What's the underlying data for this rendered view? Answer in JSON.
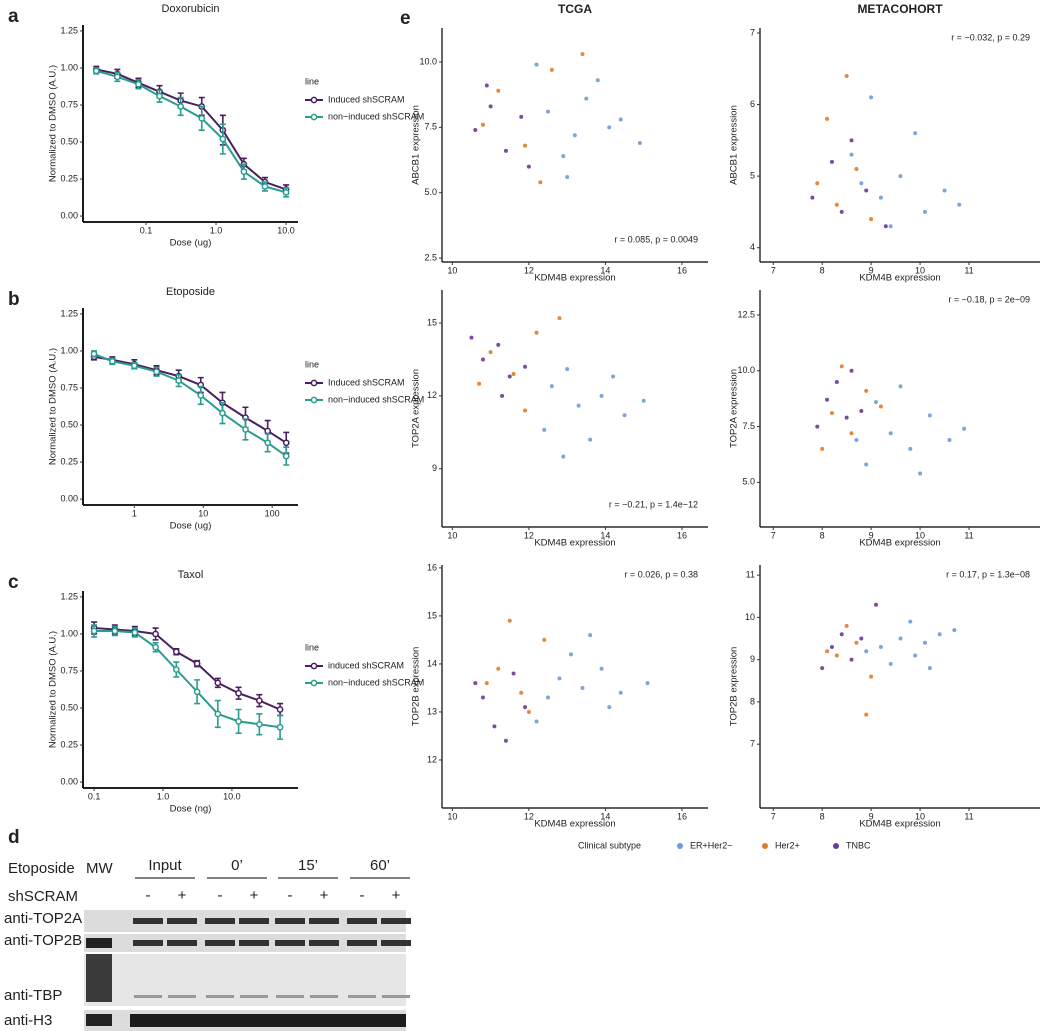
{
  "chart_data": [
    {
      "type": "line",
      "panel": "a",
      "title": "Doxorubicin",
      "xlabel": "Dose (ug)",
      "ylabel": "Normalized to DMSO (A.U.)",
      "log_x": true,
      "xlim": [
        0.0126,
        14.8
      ],
      "xticks": [
        0.1,
        {
          "value": 1,
          "label": "1.0"
        },
        {
          "value": 10,
          "label": "10.0"
        }
      ],
      "ylim": [
        -0.04,
        1.29
      ],
      "yticks": [
        {
          "value": 0,
          "label": "0.00"
        },
        0.25,
        {
          "value": 0.5,
          "label": "0.50"
        },
        0.75,
        {
          "value": 1,
          "label": "1.00"
        },
        1.25
      ],
      "legend_title": "line",
      "x": [
        0.0195,
        0.039,
        0.078,
        0.156,
        0.3125,
        0.625,
        1.25,
        2.5,
        5,
        10
      ],
      "series": [
        {
          "name": "Induced shSCRAM",
          "color": "#4a1f60",
          "values": [
            0.99,
            0.96,
            0.9,
            0.84,
            0.78,
            0.74,
            0.58,
            0.35,
            0.23,
            0.18
          ],
          "errors": [
            0.02,
            0.03,
            0.03,
            0.04,
            0.05,
            0.06,
            0.1,
            0.04,
            0.03,
            0.03
          ]
        },
        {
          "name": "non−induced shSCRAM",
          "color": "#2a9d8f",
          "values": [
            0.98,
            0.94,
            0.89,
            0.81,
            0.74,
            0.66,
            0.52,
            0.3,
            0.2,
            0.16
          ],
          "errors": [
            0.02,
            0.03,
            0.03,
            0.04,
            0.06,
            0.08,
            0.1,
            0.05,
            0.03,
            0.03
          ]
        }
      ]
    },
    {
      "type": "line",
      "panel": "b",
      "title": "Etoposide",
      "xlabel": "Dose (ug)",
      "ylabel": "Normalized to DMSO (A.U.)",
      "log_x": true,
      "xlim": [
        0.18,
        237
      ],
      "xticks": [
        1,
        10,
        100
      ],
      "ylim": [
        -0.04,
        1.29
      ],
      "yticks": [
        {
          "value": 0,
          "label": "0.00"
        },
        0.25,
        {
          "value": 0.5,
          "label": "0.50"
        },
        0.75,
        {
          "value": 1,
          "label": "1.00"
        },
        1.25
      ],
      "legend_title": "line",
      "x": [
        0.26,
        0.48,
        1.0,
        2.1,
        4.4,
        9.2,
        19,
        41,
        86,
        160
      ],
      "series": [
        {
          "name": "Induced shSCRAM",
          "color": "#4a1f60",
          "values": [
            0.96,
            0.94,
            0.91,
            0.87,
            0.83,
            0.77,
            0.65,
            0.55,
            0.46,
            0.38
          ],
          "errors": [
            0.02,
            0.02,
            0.03,
            0.03,
            0.04,
            0.05,
            0.07,
            0.07,
            0.07,
            0.07
          ]
        },
        {
          "name": "non−induced shSCRAM",
          "color": "#2a9d8f",
          "values": [
            0.98,
            0.93,
            0.9,
            0.86,
            0.8,
            0.7,
            0.58,
            0.47,
            0.38,
            0.29
          ],
          "errors": [
            0.02,
            0.02,
            0.02,
            0.03,
            0.04,
            0.06,
            0.07,
            0.07,
            0.06,
            0.06
          ]
        }
      ]
    },
    {
      "type": "line",
      "panel": "c",
      "title": "Taxol",
      "xlabel": "Dose (ng)",
      "ylabel": "Normalized to DMSO (A.U.)",
      "log_x": true,
      "xlim": [
        0.069,
        91
      ],
      "xticks": [
        0.1,
        {
          "value": 1,
          "label": "1.0"
        },
        {
          "value": 10,
          "label": "10.0"
        }
      ],
      "ylim": [
        -0.04,
        1.29
      ],
      "yticks": [
        {
          "value": 0,
          "label": "0.00"
        },
        0.25,
        {
          "value": 0.5,
          "label": "0.50"
        },
        0.75,
        {
          "value": 1,
          "label": "1.00"
        },
        1.25
      ],
      "legend_title": "line",
      "x": [
        0.1,
        0.2,
        0.39,
        0.78,
        1.56,
        3.125,
        6.25,
        12.5,
        25,
        50
      ],
      "series": [
        {
          "name": "induced shSCRAM",
          "color": "#4a1f60",
          "values": [
            1.04,
            1.03,
            1.02,
            1.0,
            0.88,
            0.8,
            0.67,
            0.6,
            0.55,
            0.49
          ],
          "errors": [
            0.04,
            0.03,
            0.03,
            0.04,
            0.02,
            0.02,
            0.03,
            0.04,
            0.04,
            0.04
          ]
        },
        {
          "name": "non−induced shSCRAM",
          "color": "#2a9d8f",
          "values": [
            1.02,
            1.02,
            1.01,
            0.91,
            0.76,
            0.61,
            0.46,
            0.41,
            0.39,
            0.37
          ],
          "errors": [
            0.04,
            0.03,
            0.03,
            0.03,
            0.05,
            0.08,
            0.09,
            0.08,
            0.07,
            0.08
          ]
        }
      ]
    },
    {
      "type": "scatter",
      "panel": "e",
      "title": "TCGA",
      "xlabel": "KDM4B expression",
      "ylabel": "ABCB1 expression",
      "annotation": "r = 0.085, p = 0.0049",
      "xlim": [
        9.73,
        16.68
      ],
      "xticks": [
        10,
        12,
        14,
        16
      ],
      "ylim": [
        2.35,
        11.3
      ],
      "yticks": [
        2.5,
        {
          "value": 5,
          "label": "5.0"
        },
        7.5,
        {
          "value": 10,
          "label": "10.0"
        }
      ],
      "series": [
        {
          "color": "#6f9bd8",
          "x": [
            12.5,
            13.2,
            13.8,
            14.4,
            12.9,
            13.5,
            14.9,
            12.2,
            13.0,
            14.1
          ],
          "values": [
            8.1,
            7.2,
            9.3,
            7.8,
            6.4,
            8.6,
            6.9,
            9.9,
            5.6,
            7.5
          ]
        },
        {
          "color": "#e07b2a",
          "x": [
            11.2,
            11.9,
            12.6,
            10.8,
            12.3,
            13.4
          ],
          "values": [
            8.9,
            6.8,
            9.7,
            7.6,
            5.4,
            10.3
          ]
        },
        {
          "color": "#6b3a98",
          "x": [
            10.6,
            11.0,
            11.4,
            11.8,
            10.9,
            12.0
          ],
          "values": [
            7.4,
            8.3,
            6.6,
            7.9,
            9.1,
            6.0
          ]
        }
      ]
    },
    {
      "type": "scatter",
      "title": "METACOHORT",
      "xlabel": "KDM4B expression",
      "ylabel": "ABCB1 expression",
      "annotation": "r = −0.032, p = 0.29",
      "xlim": [
        6.73,
        12.45
      ],
      "xticks": [
        7,
        8,
        9,
        10,
        11
      ],
      "ylim": [
        3.8,
        7.07
      ],
      "yticks": [
        4,
        5,
        6,
        7
      ],
      "series": [
        {
          "color": "#6f9bd8",
          "x": [
            9.2,
            9.6,
            10.1,
            8.8,
            9.9,
            10.5,
            9.4,
            8.6,
            10.8,
            9.0
          ],
          "values": [
            4.7,
            5.0,
            4.5,
            4.9,
            5.6,
            4.8,
            4.3,
            5.3,
            4.6,
            6.1
          ]
        },
        {
          "color": "#e07b2a",
          "x": [
            8.3,
            8.7,
            8.1,
            9.0,
            8.5,
            7.9
          ],
          "values": [
            4.6,
            5.1,
            5.8,
            4.4,
            6.4,
            4.9
          ]
        },
        {
          "color": "#6b3a98",
          "x": [
            8.4,
            8.9,
            8.2,
            9.3,
            7.8,
            8.6
          ],
          "values": [
            4.5,
            4.8,
            5.2,
            4.3,
            4.7,
            5.5
          ]
        }
      ]
    },
    {
      "type": "scatter",
      "xlabel": "KDM4B expression",
      "ylabel": "TOP2A expression",
      "annotation": "r = −0.21, p = 1.4e−12",
      "xlim": [
        9.73,
        16.68
      ],
      "xticks": [
        10,
        12,
        14,
        16
      ],
      "ylim": [
        6.6,
        16.36
      ],
      "yticks": [
        9,
        12,
        15
      ],
      "series": [
        {
          "color": "#6f9bd8",
          "x": [
            12.6,
            13.3,
            13.9,
            14.5,
            13.0,
            12.4,
            14.2,
            13.6,
            15.0,
            12.9
          ],
          "values": [
            12.4,
            11.6,
            12.0,
            11.2,
            13.1,
            10.6,
            12.8,
            10.2,
            11.8,
            9.5
          ]
        },
        {
          "color": "#e07b2a",
          "x": [
            11.0,
            11.6,
            12.2,
            10.7,
            12.8,
            11.9
          ],
          "values": [
            13.8,
            12.9,
            14.6,
            12.5,
            15.2,
            11.4
          ]
        },
        {
          "color": "#6b3a98",
          "x": [
            10.8,
            11.2,
            11.5,
            11.9,
            10.5,
            11.3
          ],
          "values": [
            13.5,
            14.1,
            12.8,
            13.2,
            14.4,
            12.0
          ]
        }
      ]
    },
    {
      "type": "scatter",
      "xlabel": "KDM4B expression",
      "ylabel": "TOP2A expression",
      "annotation": "r = −0.18, p = 2e−09",
      "xlim": [
        6.73,
        12.45
      ],
      "xticks": [
        7,
        8,
        9,
        10,
        11
      ],
      "ylim": [
        3.0,
        13.62
      ],
      "yticks": [
        {
          "value": 5,
          "label": "5.0"
        },
        7.5,
        {
          "value": 10,
          "label": "10.0"
        },
        12.5
      ],
      "series": [
        {
          "color": "#6f9bd8",
          "x": [
            9.4,
            9.8,
            10.2,
            8.9,
            10.6,
            9.1,
            10.0,
            9.6,
            8.7,
            10.9
          ],
          "values": [
            7.2,
            6.5,
            8.0,
            5.8,
            6.9,
            8.6,
            5.4,
            9.3,
            6.9,
            7.4
          ]
        },
        {
          "color": "#e07b2a",
          "x": [
            8.2,
            8.6,
            8.9,
            8.0,
            9.2,
            8.4
          ],
          "values": [
            8.1,
            7.2,
            9.1,
            6.5,
            8.4,
            10.2
          ]
        },
        {
          "color": "#6b3a98",
          "x": [
            8.1,
            8.5,
            8.3,
            8.8,
            7.9,
            8.6
          ],
          "values": [
            8.7,
            7.9,
            9.5,
            8.2,
            7.5,
            10.0
          ]
        }
      ]
    },
    {
      "type": "scatter",
      "xlabel": "KDM4B expression",
      "ylabel": "TOP2B expression",
      "annotation": "r = 0.026, p = 0.38",
      "xlim": [
        9.73,
        16.68
      ],
      "xticks": [
        10,
        12,
        14,
        16
      ],
      "ylim": [
        11.0,
        16.06
      ],
      "yticks": [
        12,
        13,
        14,
        15,
        16
      ],
      "series": [
        {
          "color": "#6f9bd8",
          "x": [
            12.8,
            13.4,
            13.9,
            14.4,
            13.1,
            12.5,
            14.1,
            13.6,
            15.1,
            12.2
          ],
          "values": [
            13.7,
            13.5,
            13.9,
            13.4,
            14.2,
            13.3,
            13.1,
            14.6,
            13.6,
            12.8
          ]
        },
        {
          "color": "#e07b2a",
          "x": [
            11.2,
            11.8,
            12.4,
            10.9,
            12.0,
            11.5
          ],
          "values": [
            13.9,
            13.4,
            14.5,
            13.6,
            13.0,
            14.9
          ]
        },
        {
          "color": "#6b3a98",
          "x": [
            10.8,
            11.1,
            11.6,
            11.4,
            10.6,
            11.9
          ],
          "values": [
            13.3,
            12.7,
            13.8,
            12.4,
            13.6,
            13.1
          ]
        }
      ]
    },
    {
      "type": "scatter",
      "xlabel": "KDM4B expression",
      "ylabel": "TOP2B expression",
      "annotation": "r = 0.17, p = 1.3e−08",
      "xlim": [
        6.73,
        12.45
      ],
      "xticks": [
        7,
        8,
        9,
        10,
        11
      ],
      "ylim": [
        5.49,
        11.24
      ],
      "yticks": [
        7,
        8,
        9,
        10,
        11
      ],
      "series": [
        {
          "color": "#6f9bd8",
          "x": [
            9.2,
            9.6,
            10.1,
            9.9,
            10.4,
            9.4,
            8.9,
            10.7,
            9.8,
            10.2
          ],
          "values": [
            9.3,
            9.5,
            9.4,
            9.1,
            9.6,
            8.9,
            9.2,
            9.7,
            9.9,
            8.8
          ]
        },
        {
          "color": "#e07b2a",
          "x": [
            8.3,
            8.7,
            9.0,
            8.5,
            8.1,
            8.9
          ],
          "values": [
            9.1,
            9.4,
            8.6,
            9.8,
            9.2,
            7.7
          ]
        },
        {
          "color": "#6b3a98",
          "x": [
            8.2,
            8.6,
            8.4,
            8.8,
            8.0,
            9.1
          ],
          "values": [
            9.3,
            9.0,
            9.6,
            9.5,
            8.8,
            10.3
          ]
        }
      ]
    }
  ],
  "scatter_legend": {
    "title": "Clinical subtype",
    "entries": [
      {
        "name": "ER+Her2−",
        "color": "#6f9bd8"
      },
      {
        "name": "Her2+",
        "color": "#e07b2a"
      },
      {
        "name": "TNBC",
        "color": "#6b3a98"
      }
    ]
  },
  "blot": {
    "panel": "d",
    "treatment": "Etoposide",
    "marker": "MW",
    "groups": [
      "Input",
      "0’",
      "15’",
      "60’"
    ],
    "shrna": "shSCRAM",
    "lanes": [
      "-",
      "+",
      "-",
      "+",
      "-",
      "+",
      "-",
      "+"
    ],
    "antibodies": [
      "anti-TOP2A",
      "anti-TOP2B",
      "anti-TBP",
      "anti-H3"
    ]
  }
}
